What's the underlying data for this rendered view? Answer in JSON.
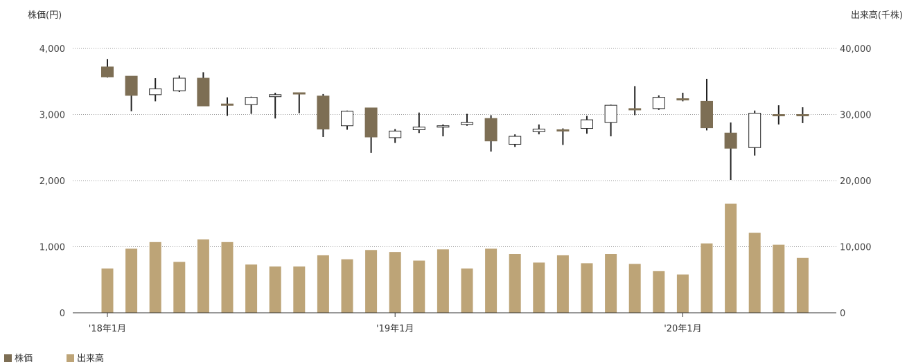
{
  "chart_data": {
    "type": "candlestick-bar-combo",
    "y_left_label": "株価(円)",
    "y_right_label": "出来高(千株)",
    "y_left_ticks": [
      "4,000",
      "3,000",
      "2,000",
      "1,000",
      "0"
    ],
    "y_left_tick_values": [
      4000,
      3000,
      2000,
      1000,
      0
    ],
    "y_right_ticks": [
      "40,000",
      "30,000",
      "20,000",
      "10,000",
      "0"
    ],
    "y_right_tick_values": [
      40000,
      30000,
      20000,
      10000,
      0
    ],
    "y_left_range": [
      0,
      4000
    ],
    "y_right_range": [
      0,
      40000
    ],
    "x_labels": [
      {
        "label": "'18年1月",
        "index": 0
      },
      {
        "label": "'19年1月",
        "index": 12
      },
      {
        "label": "'20年1月",
        "index": 24
      }
    ],
    "legend": [
      {
        "name": "株価",
        "color": "#7d6e54"
      },
      {
        "name": "出来高",
        "color": "#bda477"
      }
    ],
    "colors": {
      "price_down": "#7d6e54",
      "price_up": "#ffffff",
      "volume": "#bda477"
    },
    "grid": true,
    "series": [
      {
        "name": "株価",
        "type": "candlestick",
        "ohlc": [
          [
            3720,
            3840,
            3560,
            3570
          ],
          [
            3580,
            3580,
            3050,
            3290
          ],
          [
            3300,
            3550,
            3200,
            3390
          ],
          [
            3360,
            3590,
            3340,
            3550
          ],
          [
            3550,
            3640,
            3130,
            3130
          ],
          [
            3160,
            3260,
            2980,
            3160
          ],
          [
            3150,
            3270,
            3010,
            3260
          ],
          [
            3270,
            3330,
            2940,
            3300
          ],
          [
            3330,
            3330,
            3020,
            3320
          ],
          [
            3280,
            3310,
            2660,
            2780
          ],
          [
            2830,
            3060,
            2770,
            3050
          ],
          [
            3100,
            3100,
            2420,
            2660
          ],
          [
            2650,
            2780,
            2570,
            2750
          ],
          [
            2770,
            3030,
            2720,
            2810
          ],
          [
            2820,
            2850,
            2670,
            2830
          ],
          [
            2850,
            3010,
            2830,
            2880
          ],
          [
            2940,
            2990,
            2440,
            2600
          ],
          [
            2550,
            2700,
            2510,
            2670
          ],
          [
            2740,
            2850,
            2700,
            2780
          ],
          [
            2770,
            2790,
            2540,
            2760
          ],
          [
            2790,
            2980,
            2710,
            2920
          ],
          [
            2880,
            3150,
            2670,
            3140
          ],
          [
            3090,
            3430,
            2990,
            3070
          ],
          [
            3090,
            3290,
            3070,
            3260
          ],
          [
            3240,
            3330,
            3200,
            3240
          ],
          [
            3200,
            3540,
            2760,
            2800
          ],
          [
            2720,
            2880,
            2010,
            2490
          ],
          [
            2500,
            3060,
            2380,
            3020
          ],
          [
            3000,
            3140,
            2850,
            3000
          ],
          [
            3000,
            3110,
            2870,
            3000
          ]
        ]
      },
      {
        "name": "出来高",
        "type": "bar",
        "values": [
          6700,
          9700,
          10700,
          7700,
          11100,
          10700,
          7300,
          7000,
          7000,
          8700,
          8100,
          9500,
          9200,
          7900,
          9600,
          6700,
          9700,
          8900,
          7600,
          8700,
          7500,
          8900,
          7400,
          6300,
          5800,
          10500,
          16500,
          12100,
          10300,
          8300
        ]
      }
    ]
  }
}
